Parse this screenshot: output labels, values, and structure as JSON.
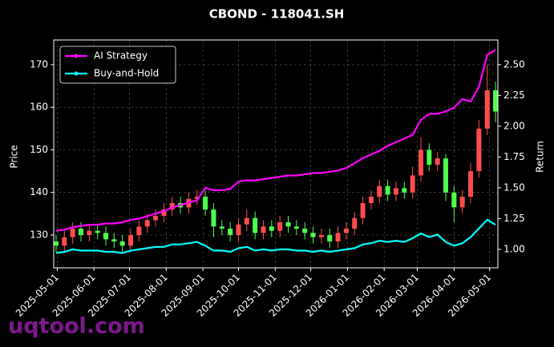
{
  "chart_data": {
    "type": "candlestick",
    "title": "CBOND - 118041.SH",
    "ylabel": "Price",
    "y2label": "Return",
    "watermark": "uqtool.com",
    "x": [
      "2025-04-30",
      "2025-05-07",
      "2025-05-14",
      "2025-05-21",
      "2025-05-28",
      "2025-06-04",
      "2025-06-11",
      "2025-06-18",
      "2025-06-25",
      "2025-07-02",
      "2025-07-09",
      "2025-07-16",
      "2025-07-23",
      "2025-07-30",
      "2025-08-06",
      "2025-08-13",
      "2025-08-20",
      "2025-08-27",
      "2025-09-03",
      "2025-09-10",
      "2025-09-17",
      "2025-09-24",
      "2025-10-01",
      "2025-10-08",
      "2025-10-15",
      "2025-10-22",
      "2025-10-29",
      "2025-11-05",
      "2025-11-12",
      "2025-11-19",
      "2025-11-26",
      "2025-12-03",
      "2025-12-10",
      "2025-12-17",
      "2025-12-24",
      "2025-12-31",
      "2026-01-07",
      "2026-01-14",
      "2026-01-21",
      "2026-01-28",
      "2026-02-04",
      "2026-02-11",
      "2026-02-18",
      "2026-02-25",
      "2026-03-04",
      "2026-03-11",
      "2026-03-18",
      "2026-03-25",
      "2026-04-01",
      "2026-04-08",
      "2026-04-15",
      "2026-04-22",
      "2026-04-29",
      "2026-05-06"
    ],
    "open": [
      128.5,
      127.5,
      129.5,
      131.5,
      130.0,
      131.0,
      130.5,
      129.0,
      128.5,
      127.5,
      130.0,
      132.0,
      133.5,
      134.5,
      136.0,
      137.5,
      136.5,
      138.5,
      139.0,
      136.0,
      132.0,
      131.5,
      130.0,
      132.5,
      134.0,
      130.5,
      132.0,
      131.0,
      133.0,
      132.0,
      131.5,
      130.5,
      129.5,
      130.0,
      128.5,
      130.5,
      131.5,
      134.0,
      137.5,
      139.0,
      141.5,
      139.5,
      141.0,
      140.0,
      144.0,
      150.0,
      146.5,
      148.0,
      140.0,
      136.5,
      139.0,
      145.0,
      155.0,
      164.0
    ],
    "high": [
      130.0,
      131.0,
      133.0,
      133.0,
      132.5,
      132.5,
      132.0,
      130.5,
      130.0,
      131.5,
      133.5,
      135.0,
      136.0,
      137.5,
      139.0,
      139.0,
      140.0,
      140.5,
      140.5,
      137.5,
      133.5,
      133.0,
      134.0,
      136.0,
      135.5,
      133.5,
      133.5,
      134.5,
      134.5,
      133.5,
      133.0,
      132.0,
      131.5,
      131.5,
      132.0,
      133.0,
      135.5,
      139.0,
      140.5,
      143.0,
      143.0,
      142.5,
      142.5,
      146.0,
      153.0,
      151.5,
      149.5,
      149.0,
      141.5,
      140.5,
      147.0,
      157.0,
      170.0,
      166.0
    ],
    "low": [
      126.0,
      126.0,
      128.0,
      128.5,
      128.5,
      129.0,
      127.5,
      127.0,
      126.0,
      126.0,
      128.5,
      130.5,
      132.0,
      133.0,
      134.5,
      135.0,
      135.0,
      137.0,
      134.5,
      129.5,
      130.0,
      128.5,
      128.5,
      131.0,
      129.0,
      129.0,
      129.5,
      129.5,
      130.5,
      130.0,
      129.0,
      128.0,
      128.0,
      127.0,
      127.0,
      129.0,
      130.0,
      132.5,
      136.0,
      137.5,
      138.0,
      138.0,
      138.5,
      138.5,
      142.5,
      145.0,
      145.0,
      138.0,
      133.0,
      135.0,
      137.5,
      143.5,
      153.5,
      156.5
    ],
    "close": [
      127.5,
      129.5,
      131.5,
      130.0,
      131.0,
      130.5,
      129.0,
      128.5,
      127.5,
      130.0,
      132.0,
      133.5,
      134.5,
      136.0,
      137.5,
      136.5,
      138.5,
      139.0,
      136.0,
      132.0,
      131.5,
      130.0,
      132.5,
      134.0,
      130.5,
      132.0,
      131.0,
      133.0,
      132.0,
      131.5,
      130.5,
      129.5,
      130.0,
      128.5,
      130.5,
      131.5,
      134.0,
      137.5,
      139.0,
      141.5,
      139.5,
      141.0,
      140.0,
      144.0,
      150.0,
      146.5,
      148.0,
      140.0,
      136.5,
      139.0,
      145.0,
      155.0,
      164.0,
      159.0
    ],
    "up_color": "#ff4d4d",
    "down_color": "#4dff4d",
    "series": [
      {
        "name": "AI Strategy",
        "color": "#ff00ff",
        "axis": "y2",
        "values": [
          1.15,
          1.16,
          1.18,
          1.19,
          1.2,
          1.2,
          1.21,
          1.21,
          1.22,
          1.24,
          1.25,
          1.27,
          1.29,
          1.31,
          1.34,
          1.36,
          1.38,
          1.4,
          1.5,
          1.48,
          1.48,
          1.49,
          1.55,
          1.56,
          1.56,
          1.57,
          1.58,
          1.59,
          1.6,
          1.6,
          1.61,
          1.62,
          1.62,
          1.63,
          1.64,
          1.66,
          1.7,
          1.74,
          1.77,
          1.8,
          1.84,
          1.87,
          1.9,
          1.93,
          2.05,
          2.1,
          2.1,
          2.12,
          2.15,
          2.22,
          2.2,
          2.32,
          2.58,
          2.62
        ]
      },
      {
        "name": "Buy-and-Hold",
        "color": "#00ffff",
        "axis": "y2",
        "values": [
          0.97,
          0.98,
          1.0,
          0.99,
          0.99,
          0.99,
          0.98,
          0.98,
          0.97,
          0.99,
          1.0,
          1.01,
          1.02,
          1.02,
          1.04,
          1.04,
          1.05,
          1.06,
          1.03,
          0.99,
          0.99,
          0.98,
          1.01,
          1.02,
          0.99,
          1.0,
          0.99,
          1.0,
          1.0,
          0.99,
          0.99,
          0.98,
          0.99,
          0.98,
          0.99,
          1.0,
          1.01,
          1.04,
          1.05,
          1.07,
          1.06,
          1.07,
          1.06,
          1.09,
          1.13,
          1.1,
          1.12,
          1.06,
          1.03,
          1.05,
          1.1,
          1.17,
          1.24,
          1.2
        ]
      }
    ],
    "xlim": [
      "2025-04-28",
      "2026-05-08"
    ],
    "xticks": [
      "2025-05-01",
      "2025-06-01",
      "2025-07-01",
      "2025-08-01",
      "2025-09-01",
      "2025-10-01",
      "2025-11-01",
      "2025-12-01",
      "2026-01-01",
      "2026-02-01",
      "2026-03-01",
      "2026-04-01",
      "2026-05-01"
    ],
    "ylim": [
      122.3,
      175.8
    ],
    "yticks": [
      130,
      140,
      150,
      160,
      170
    ],
    "y2lim": [
      0.85,
      2.7
    ],
    "y2ticks": [
      {
        "value": 1,
        "label": "1.00"
      },
      1.25,
      {
        "value": 1.5,
        "label": "1.50"
      },
      1.75,
      {
        "value": 2,
        "label": "2.00"
      },
      2.25,
      {
        "value": 2.5,
        "label": "2.50"
      }
    ],
    "grid": true,
    "legend": "upper-left"
  }
}
